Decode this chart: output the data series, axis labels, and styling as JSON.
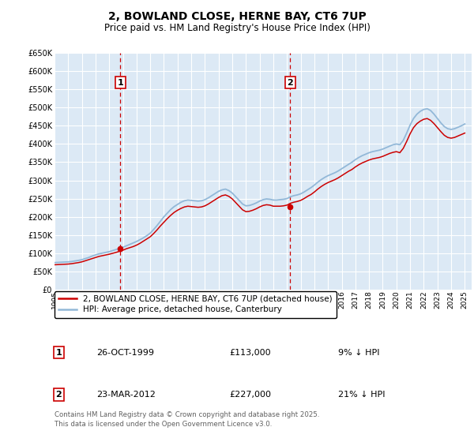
{
  "title": "2, BOWLAND CLOSE, HERNE BAY, CT6 7UP",
  "subtitle": "Price paid vs. HM Land Registry's House Price Index (HPI)",
  "ylim": [
    0,
    650000
  ],
  "yticks": [
    0,
    50000,
    100000,
    150000,
    200000,
    250000,
    300000,
    350000,
    400000,
    450000,
    500000,
    550000,
    600000,
    650000
  ],
  "bg_color": "#dce9f5",
  "grid_color": "#ffffff",
  "line_hpi_color": "#92b8d8",
  "line_price_color": "#cc0000",
  "vline_color": "#cc0000",
  "sale1_year": 1999.82,
  "sale1_price": 113000,
  "sale1_label": "1",
  "sale1_date": "26-OCT-1999",
  "sale1_amount": "£113,000",
  "sale1_pct": "9% ↓ HPI",
  "sale2_year": 2012.23,
  "sale2_price": 227000,
  "sale2_label": "2",
  "sale2_date": "23-MAR-2012",
  "sale2_amount": "£227,000",
  "sale2_pct": "21% ↓ HPI",
  "legend_line1": "2, BOWLAND CLOSE, HERNE BAY, CT6 7UP (detached house)",
  "legend_line2": "HPI: Average price, detached house, Canterbury",
  "footnote": "Contains HM Land Registry data © Crown copyright and database right 2025.\nThis data is licensed under the Open Government Licence v3.0.",
  "hpi_years": [
    1995.0,
    1995.25,
    1995.5,
    1995.75,
    1996.0,
    1996.25,
    1996.5,
    1996.75,
    1997.0,
    1997.25,
    1997.5,
    1997.75,
    1998.0,
    1998.25,
    1998.5,
    1998.75,
    1999.0,
    1999.25,
    1999.5,
    1999.75,
    2000.0,
    2000.25,
    2000.5,
    2000.75,
    2001.0,
    2001.25,
    2001.5,
    2001.75,
    2002.0,
    2002.25,
    2002.5,
    2002.75,
    2003.0,
    2003.25,
    2003.5,
    2003.75,
    2004.0,
    2004.25,
    2004.5,
    2004.75,
    2005.0,
    2005.25,
    2005.5,
    2005.75,
    2006.0,
    2006.25,
    2006.5,
    2006.75,
    2007.0,
    2007.25,
    2007.5,
    2007.75,
    2008.0,
    2008.25,
    2008.5,
    2008.75,
    2009.0,
    2009.25,
    2009.5,
    2009.75,
    2010.0,
    2010.25,
    2010.5,
    2010.75,
    2011.0,
    2011.25,
    2011.5,
    2011.75,
    2012.0,
    2012.25,
    2012.5,
    2012.75,
    2013.0,
    2013.25,
    2013.5,
    2013.75,
    2014.0,
    2014.25,
    2014.5,
    2014.75,
    2015.0,
    2015.25,
    2015.5,
    2015.75,
    2016.0,
    2016.25,
    2016.5,
    2016.75,
    2017.0,
    2017.25,
    2017.5,
    2017.75,
    2018.0,
    2018.25,
    2018.5,
    2018.75,
    2019.0,
    2019.25,
    2019.5,
    2019.75,
    2020.0,
    2020.25,
    2020.5,
    2020.75,
    2021.0,
    2021.25,
    2021.5,
    2021.75,
    2022.0,
    2022.25,
    2022.5,
    2022.75,
    2023.0,
    2023.25,
    2023.5,
    2023.75,
    2024.0,
    2024.25,
    2024.5,
    2024.75,
    2025.0
  ],
  "hpi_values": [
    74000,
    74500,
    75000,
    75500,
    76000,
    77000,
    78500,
    80000,
    82000,
    85000,
    88000,
    92000,
    95000,
    98000,
    100000,
    102000,
    104000,
    107000,
    110000,
    113000,
    116000,
    120000,
    124000,
    128000,
    132000,
    137000,
    142000,
    148000,
    155000,
    165000,
    176000,
    188000,
    200000,
    210000,
    220000,
    228000,
    234000,
    240000,
    244000,
    246000,
    245000,
    244000,
    243000,
    244000,
    247000,
    252000,
    258000,
    264000,
    270000,
    274000,
    276000,
    272000,
    265000,
    255000,
    245000,
    235000,
    230000,
    231000,
    234000,
    238000,
    243000,
    247000,
    249000,
    248000,
    246000,
    246000,
    247000,
    248000,
    250000,
    255000,
    258000,
    260000,
    263000,
    268000,
    274000,
    280000,
    287000,
    295000,
    302000,
    308000,
    313000,
    317000,
    321000,
    326000,
    332000,
    338000,
    344000,
    350000,
    357000,
    363000,
    368000,
    372000,
    376000,
    379000,
    381000,
    383000,
    386000,
    390000,
    394000,
    398000,
    400000,
    398000,
    410000,
    430000,
    452000,
    470000,
    482000,
    490000,
    495000,
    497000,
    492000,
    482000,
    470000,
    458000,
    448000,
    442000,
    440000,
    442000,
    446000,
    450000,
    455000
  ],
  "price_years": [
    1995.0,
    1995.25,
    1995.5,
    1995.75,
    1996.0,
    1996.25,
    1996.5,
    1996.75,
    1997.0,
    1997.25,
    1997.5,
    1997.75,
    1998.0,
    1998.25,
    1998.5,
    1998.75,
    1999.0,
    1999.25,
    1999.5,
    1999.75,
    2000.0,
    2000.25,
    2000.5,
    2000.75,
    2001.0,
    2001.25,
    2001.5,
    2001.75,
    2002.0,
    2002.25,
    2002.5,
    2002.75,
    2003.0,
    2003.25,
    2003.5,
    2003.75,
    2004.0,
    2004.25,
    2004.5,
    2004.75,
    2005.0,
    2005.25,
    2005.5,
    2005.75,
    2006.0,
    2006.25,
    2006.5,
    2006.75,
    2007.0,
    2007.25,
    2007.5,
    2007.75,
    2008.0,
    2008.25,
    2008.5,
    2008.75,
    2009.0,
    2009.25,
    2009.5,
    2009.75,
    2010.0,
    2010.25,
    2010.5,
    2010.75,
    2011.0,
    2011.25,
    2011.5,
    2011.75,
    2012.0,
    2012.25,
    2012.5,
    2012.75,
    2013.0,
    2013.25,
    2013.5,
    2013.75,
    2014.0,
    2014.25,
    2014.5,
    2014.75,
    2015.0,
    2015.25,
    2015.5,
    2015.75,
    2016.0,
    2016.25,
    2016.5,
    2016.75,
    2017.0,
    2017.25,
    2017.5,
    2017.75,
    2018.0,
    2018.25,
    2018.5,
    2018.75,
    2019.0,
    2019.25,
    2019.5,
    2019.75,
    2020.0,
    2020.25,
    2020.5,
    2020.75,
    2021.0,
    2021.25,
    2021.5,
    2021.75,
    2022.0,
    2022.25,
    2022.5,
    2022.75,
    2023.0,
    2023.25,
    2023.5,
    2023.75,
    2024.0,
    2024.25,
    2024.5,
    2024.75,
    2025.0
  ],
  "price_values": [
    68000,
    68500,
    69000,
    69500,
    70000,
    71000,
    72500,
    74000,
    76000,
    79000,
    82000,
    85000,
    88000,
    91000,
    93000,
    95000,
    97000,
    99500,
    102000,
    105000,
    108000,
    112000,
    115000,
    118000,
    122000,
    127000,
    133000,
    139000,
    145000,
    154000,
    164000,
    175000,
    185000,
    195000,
    204000,
    212000,
    218000,
    223000,
    227000,
    229000,
    228000,
    227000,
    226000,
    227000,
    230000,
    235000,
    241000,
    247000,
    253000,
    258000,
    260000,
    256000,
    249000,
    239000,
    229000,
    219000,
    214000,
    215000,
    218000,
    222000,
    227000,
    231000,
    233000,
    232000,
    229000,
    229000,
    229000,
    230000,
    232000,
    237000,
    240000,
    242000,
    245000,
    250000,
    256000,
    261000,
    268000,
    276000,
    283000,
    289000,
    294000,
    298000,
    302000,
    307000,
    313000,
    319000,
    325000,
    330000,
    337000,
    343000,
    348000,
    352000,
    356000,
    359000,
    361000,
    363000,
    366000,
    370000,
    374000,
    377000,
    379000,
    376000,
    388000,
    407000,
    428000,
    445000,
    456000,
    463000,
    468000,
    470000,
    465000,
    456000,
    445000,
    434000,
    424000,
    418000,
    416000,
    418000,
    422000,
    426000,
    430000
  ]
}
